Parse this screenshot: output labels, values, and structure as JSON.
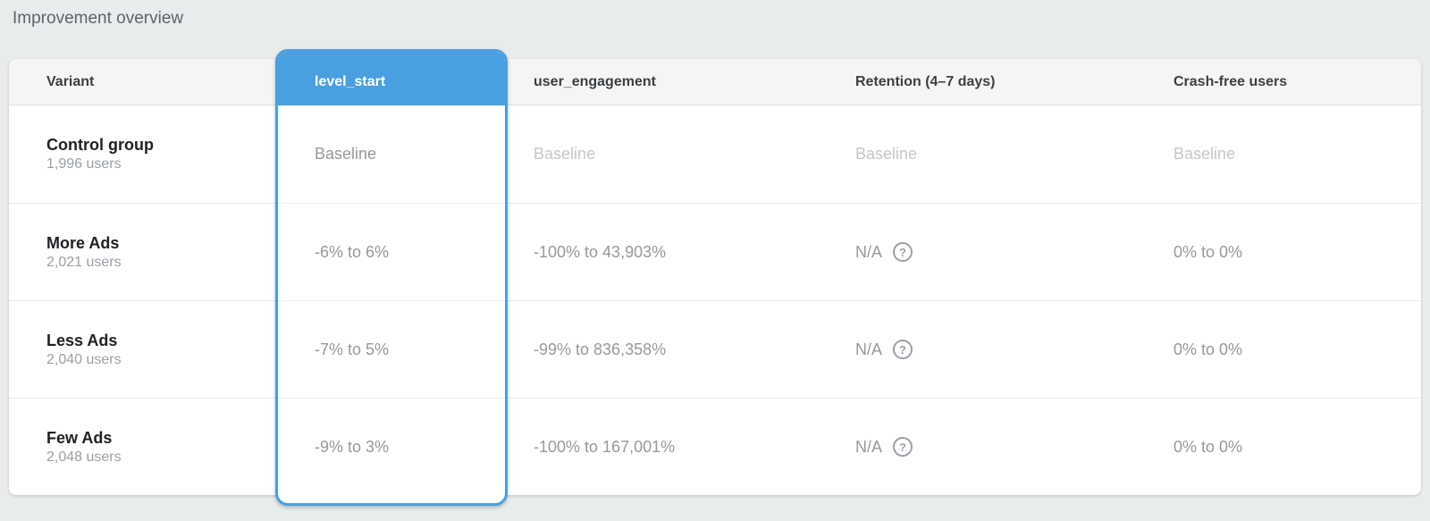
{
  "page": {
    "title": "Improvement overview"
  },
  "colors": {
    "accent_blue": "#4a9fe0",
    "page_background": "#e9eced",
    "header_background": "#f5f5f6",
    "baseline_text": "#c4c8cb",
    "value_text": "#97999b"
  },
  "table": {
    "columns": [
      {
        "id": "variant",
        "label": "Variant",
        "selected": false
      },
      {
        "id": "level_start",
        "label": "level_start",
        "selected": true
      },
      {
        "id": "user_engagement",
        "label": "user_engagement",
        "selected": false
      },
      {
        "id": "retention",
        "label": "Retention (4–7 days)",
        "selected": false
      },
      {
        "id": "crash_free",
        "label": "Crash-free users",
        "selected": false
      }
    ],
    "selected_column_label": "level_start",
    "rows": [
      {
        "variant": "Control group",
        "users": "1,996 users",
        "level_start": "Baseline",
        "user_engagement": "Baseline",
        "retention": "Baseline",
        "retention_help": false,
        "crash_free": "Baseline"
      },
      {
        "variant": "More Ads",
        "users": "2,021 users",
        "level_start": "-6% to 6%",
        "user_engagement": "-100% to 43,903%",
        "retention": "N/A",
        "retention_help": true,
        "crash_free": "0% to 0%"
      },
      {
        "variant": "Less Ads",
        "users": "2,040 users",
        "level_start": "-7% to 5%",
        "user_engagement": "-99% to 836,358%",
        "retention": "N/A",
        "retention_help": true,
        "crash_free": "0% to 0%"
      },
      {
        "variant": "Few Ads",
        "users": "2,048 users",
        "level_start": "-9% to 3%",
        "user_engagement": "-100% to 167,001%",
        "retention": "N/A",
        "retention_help": true,
        "crash_free": "0% to 0%"
      }
    ],
    "help_icon_glyph": "?"
  }
}
